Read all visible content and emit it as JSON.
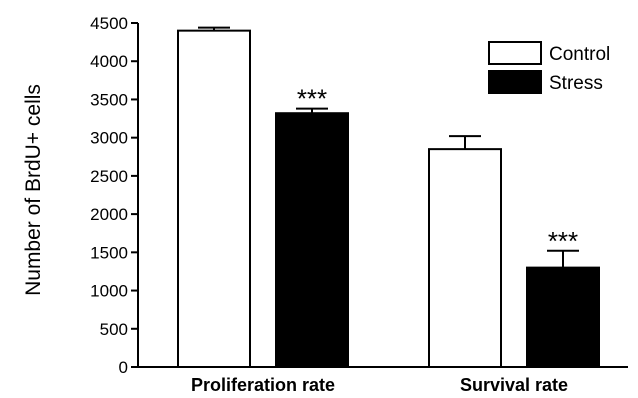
{
  "chart_data": {
    "type": "bar",
    "categories": [
      "Proliferation rate",
      "Survival rate"
    ],
    "series": [
      {
        "name": "Control",
        "values": [
          4400,
          2850
        ],
        "errors": [
          40,
          170
        ],
        "color": "#ffffff"
      },
      {
        "name": "Stress",
        "values": [
          3320,
          1300
        ],
        "errors": [
          60,
          220
        ],
        "color": "#000000"
      }
    ],
    "significance": [
      {
        "series": "Stress",
        "category": "Proliferation rate",
        "text": "***"
      },
      {
        "series": "Stress",
        "category": "Survival rate",
        "text": "***"
      }
    ],
    "xlabel": "",
    "ylabel": "Number of BrdU+ cells",
    "ylim": [
      0,
      4500
    ],
    "yticks": [
      0,
      500,
      1000,
      1500,
      2000,
      2500,
      3000,
      3500,
      4000,
      4500
    ],
    "grid": false,
    "legend_position": "top-right"
  }
}
